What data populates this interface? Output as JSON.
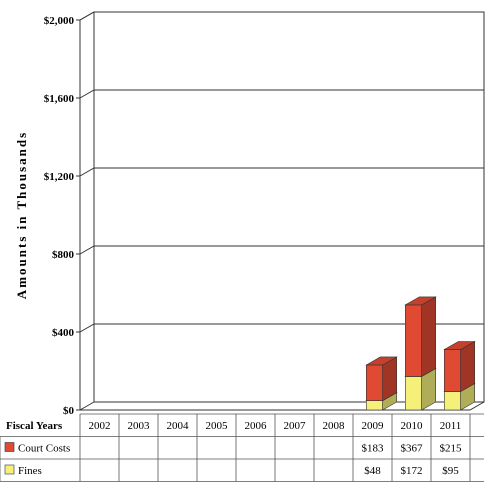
{
  "chart_data": {
    "type": "bar",
    "stacked": true,
    "style": "3d",
    "categories": [
      "2002",
      "2003",
      "2004",
      "2005",
      "2006",
      "2007",
      "2008",
      "2009",
      "2010",
      "2011"
    ],
    "series": [
      {
        "name": "Fines",
        "color": "#f5f07a",
        "values": [
          null,
          null,
          null,
          null,
          null,
          null,
          null,
          48,
          172,
          95
        ],
        "labels": [
          "",
          "",
          "",
          "",
          "",
          "",
          "",
          "$48",
          "$172",
          "$95"
        ]
      },
      {
        "name": "Court Costs",
        "color": "#e04a33",
        "values": [
          null,
          null,
          null,
          null,
          null,
          null,
          null,
          183,
          367,
          215
        ],
        "labels": [
          "",
          "",
          "",
          "",
          "",
          "",
          "",
          "$183",
          "$367",
          "$215"
        ]
      }
    ],
    "ylabel": "Amounts in Thousands",
    "ylim": [
      0,
      2000
    ],
    "yticks": [
      0,
      400,
      800,
      1200,
      1600,
      2000
    ],
    "ytick_labels": [
      "$0",
      "$400",
      "$800",
      "$1,200",
      "$1,600",
      "$2,000"
    ],
    "grid": true,
    "table_header": "Fiscal Years",
    "table_rows": [
      "Court Costs",
      "Fines"
    ]
  }
}
